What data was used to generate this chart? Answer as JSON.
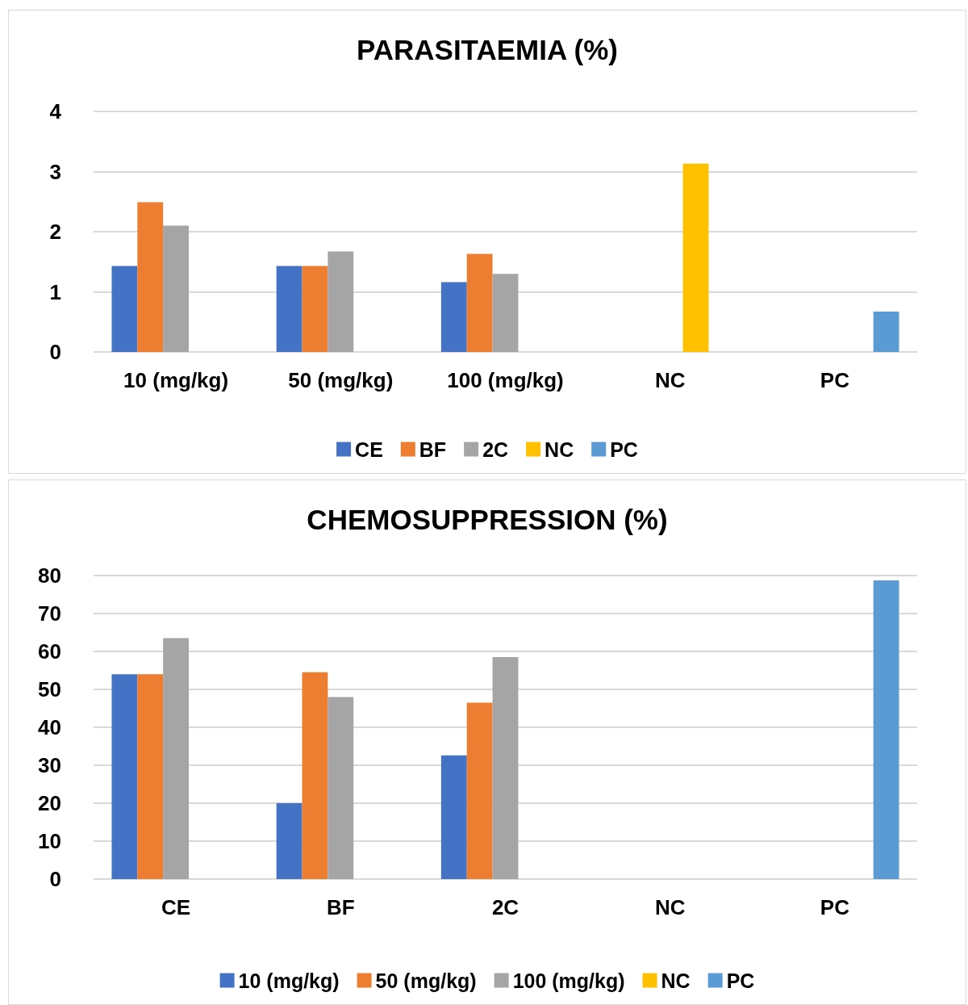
{
  "chart_data": [
    {
      "type": "bar",
      "title": "PARASITAEMIA (%)",
      "categories": [
        "10 (mg/kg)",
        "50 (mg/kg)",
        "100 (mg/kg)",
        "NC",
        "PC"
      ],
      "series": [
        {
          "name": "CE",
          "color": "#4472c4",
          "values": [
            1.43,
            1.43,
            1.16,
            null,
            null
          ]
        },
        {
          "name": "BF",
          "color": "#ed7d31",
          "values": [
            2.49,
            1.43,
            1.63,
            null,
            null
          ]
        },
        {
          "name": "2C",
          "color": "#a5a5a5",
          "values": [
            2.1,
            1.67,
            1.3,
            null,
            null
          ]
        },
        {
          "name": "NC",
          "color": "#ffc000",
          "values": [
            null,
            null,
            null,
            3.13,
            null
          ]
        },
        {
          "name": "PC",
          "color": "#5b9bd5",
          "values": [
            null,
            null,
            null,
            null,
            0.67
          ]
        }
      ],
      "ylim": [
        0,
        4
      ],
      "yticks": [
        0,
        1,
        2,
        3,
        4
      ],
      "grid": "y",
      "legend": "bottom"
    },
    {
      "type": "bar",
      "title": "CHEMOSUPPRESSION (%)",
      "categories": [
        "CE",
        "BF",
        "2C",
        "NC",
        "PC"
      ],
      "series": [
        {
          "name": "10 (mg/kg)",
          "color": "#4472c4",
          "values": [
            54,
            20,
            32.6,
            null,
            null
          ]
        },
        {
          "name": "50 (mg/kg)",
          "color": "#ed7d31",
          "values": [
            54,
            54.5,
            46.5,
            null,
            null
          ]
        },
        {
          "name": "100 (mg/kg)",
          "color": "#a5a5a5",
          "values": [
            63.5,
            48,
            58.5,
            null,
            null
          ]
        },
        {
          "name": "NC",
          "color": "#ffc000",
          "values": [
            null,
            null,
            null,
            0,
            null
          ]
        },
        {
          "name": "PC",
          "color": "#5b9bd5",
          "values": [
            null,
            null,
            null,
            null,
            78.7
          ]
        }
      ],
      "ylim": [
        0,
        80
      ],
      "yticks": [
        0,
        10,
        20,
        30,
        40,
        50,
        60,
        70,
        80
      ],
      "grid": "y",
      "legend": "bottom"
    }
  ]
}
